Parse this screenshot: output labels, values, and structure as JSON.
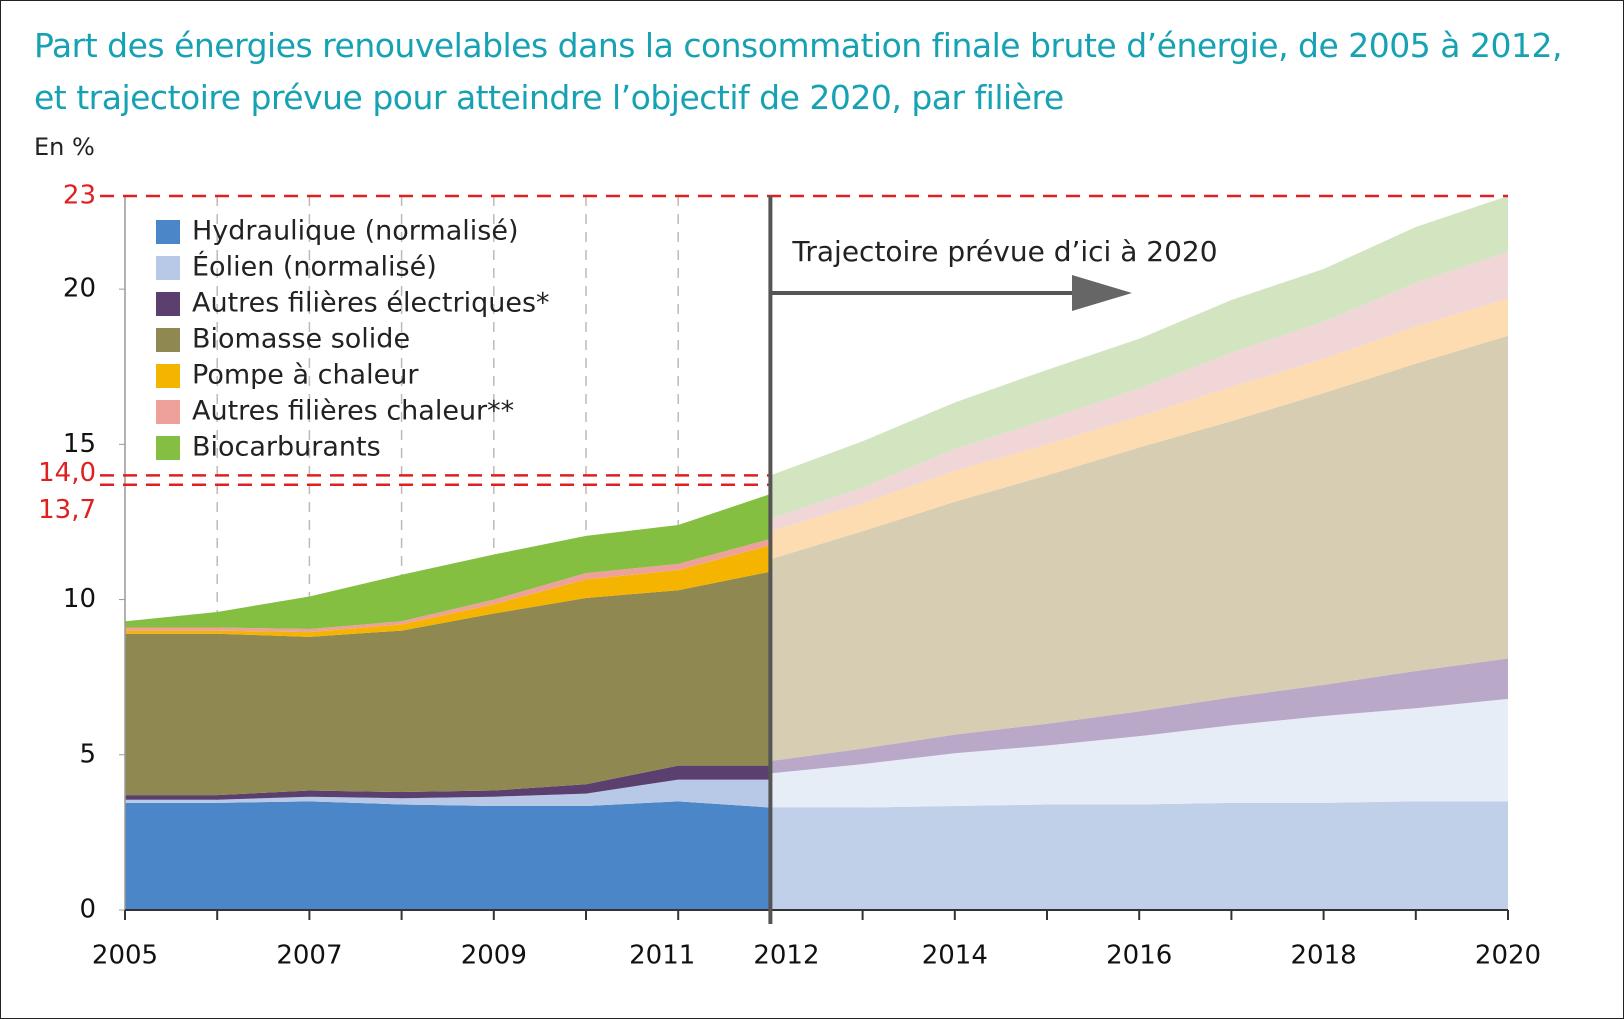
{
  "chart_data": {
    "type": "stacked_area",
    "title": "Part des énergies renouvelables dans la consommation finale brute d’énergie, de 2005 à 2012, et trajectoire prévue pour atteindre l’objectif de 2020, par filière",
    "unit": "En %",
    "annotation": "Trajectoire prévue d’ici à 2020",
    "x": [
      2005,
      2006,
      2007,
      2008,
      2009,
      2010,
      2011,
      2012,
      2013,
      2014,
      2015,
      2016,
      2017,
      2018,
      2019,
      2020
    ],
    "xticks": [
      2005,
      2007,
      2009,
      2011,
      2012,
      2014,
      2016,
      2018,
      2020
    ],
    "xlim": [
      2005,
      2020
    ],
    "ylim": [
      0,
      23
    ],
    "yticks": [
      0,
      5,
      10,
      15,
      20
    ],
    "reference_lines": [
      {
        "value": 23,
        "label": "23"
      },
      {
        "value": 14.0,
        "label": "14,0"
      },
      {
        "value": 13.7,
        "label": "13,7"
      }
    ],
    "split_year": 2012,
    "series": [
      {
        "name": "Hydraulique (normalisé)",
        "color": "#4a86c8",
        "projection_color": "#bfd0e8",
        "values": [
          3.45,
          3.45,
          3.5,
          3.4,
          3.35,
          3.35,
          3.5,
          3.3,
          null,
          null,
          null,
          null,
          null,
          null,
          null,
          null
        ],
        "projection": [
          null,
          null,
          null,
          null,
          null,
          null,
          null,
          3.3,
          3.3,
          3.35,
          3.4,
          3.4,
          3.45,
          3.45,
          3.5,
          3.5
        ]
      },
      {
        "name": "Éolien (normalisé)",
        "color": "#b7c9e6",
        "projection_color": "#e6edf7",
        "values": [
          0.1,
          0.1,
          0.15,
          0.2,
          0.3,
          0.4,
          0.7,
          0.9,
          null,
          null,
          null,
          null,
          null,
          null,
          null,
          null
        ],
        "projection": [
          null,
          null,
          null,
          null,
          null,
          null,
          null,
          1.1,
          1.4,
          1.7,
          1.9,
          2.2,
          2.5,
          2.8,
          3.0,
          3.3
        ]
      },
      {
        "name": "Autres filières électriques*",
        "color": "#5b3f6e",
        "projection_color": "#b9a8c8",
        "values": [
          0.15,
          0.15,
          0.2,
          0.2,
          0.2,
          0.3,
          0.45,
          0.45,
          null,
          null,
          null,
          null,
          null,
          null,
          null,
          null
        ],
        "projection": [
          null,
          null,
          null,
          null,
          null,
          null,
          null,
          0.4,
          0.5,
          0.6,
          0.7,
          0.8,
          0.9,
          1.0,
          1.2,
          1.3
        ]
      },
      {
        "name": "Biomasse solide",
        "color": "#8f8850",
        "projection_color": "#d6cdb3",
        "values": [
          5.2,
          5.2,
          4.95,
          5.2,
          5.7,
          6.0,
          5.65,
          6.25,
          null,
          null,
          null,
          null,
          null,
          null,
          null,
          null
        ],
        "projection": [
          null,
          null,
          null,
          null,
          null,
          null,
          null,
          6.5,
          7.0,
          7.5,
          8.0,
          8.5,
          8.9,
          9.4,
          9.9,
          10.4
        ]
      },
      {
        "name": "Pompe à chaleur",
        "color": "#f5b400",
        "projection_color": "#fcdcb0",
        "values": [
          0.1,
          0.1,
          0.15,
          0.2,
          0.3,
          0.6,
          0.65,
          0.85,
          null,
          null,
          null,
          null,
          null,
          null,
          null,
          null
        ],
        "projection": [
          null,
          null,
          null,
          null,
          null,
          null,
          null,
          0.9,
          0.9,
          1.0,
          1.0,
          1.0,
          1.1,
          1.1,
          1.2,
          1.2
        ]
      },
      {
        "name": "Autres filières chaleur**",
        "color": "#eea19a",
        "projection_color": "#f0d6d6",
        "values": [
          0.1,
          0.1,
          0.1,
          0.1,
          0.15,
          0.2,
          0.2,
          0.2,
          null,
          null,
          null,
          null,
          null,
          null,
          null,
          null
        ],
        "projection": [
          null,
          null,
          null,
          null,
          null,
          null,
          null,
          0.4,
          0.5,
          0.7,
          0.8,
          0.9,
          1.1,
          1.2,
          1.4,
          1.5
        ]
      },
      {
        "name": "Biocarburants",
        "color": "#84bf41",
        "projection_color": "#d3e4c1",
        "values": [
          0.2,
          0.5,
          1.05,
          1.5,
          1.45,
          1.2,
          1.25,
          1.45,
          null,
          null,
          null,
          null,
          null,
          null,
          null,
          null
        ],
        "projection": [
          null,
          null,
          null,
          null,
          null,
          null,
          null,
          1.4,
          1.5,
          1.5,
          1.6,
          1.6,
          1.7,
          1.7,
          1.8,
          1.8
        ]
      }
    ]
  }
}
